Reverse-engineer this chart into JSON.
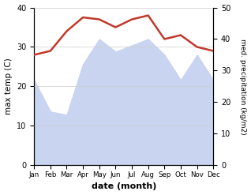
{
  "months": [
    "Jan",
    "Feb",
    "Mar",
    "Apr",
    "May",
    "Jun",
    "Jul",
    "Aug",
    "Sep",
    "Oct",
    "Nov",
    "Dec"
  ],
  "max_temp": [
    28,
    29,
    34,
    37.5,
    37,
    35,
    37,
    38,
    32,
    33,
    30,
    29
  ],
  "med_precip": [
    27,
    17,
    16,
    32,
    40,
    36,
    38,
    40,
    35,
    27,
    35,
    27
  ],
  "temp_color": "#c0392b",
  "precip_fill_color": "#c8d4f0",
  "xlabel": "date (month)",
  "ylabel_left": "max temp (C)",
  "ylabel_right": "med. precipitation (kg/m2)",
  "ylim_left": [
    0,
    40
  ],
  "ylim_right": [
    0,
    50
  ],
  "yticks_left": [
    0,
    10,
    20,
    30,
    40
  ],
  "yticks_right": [
    0,
    10,
    20,
    30,
    40,
    50
  ]
}
